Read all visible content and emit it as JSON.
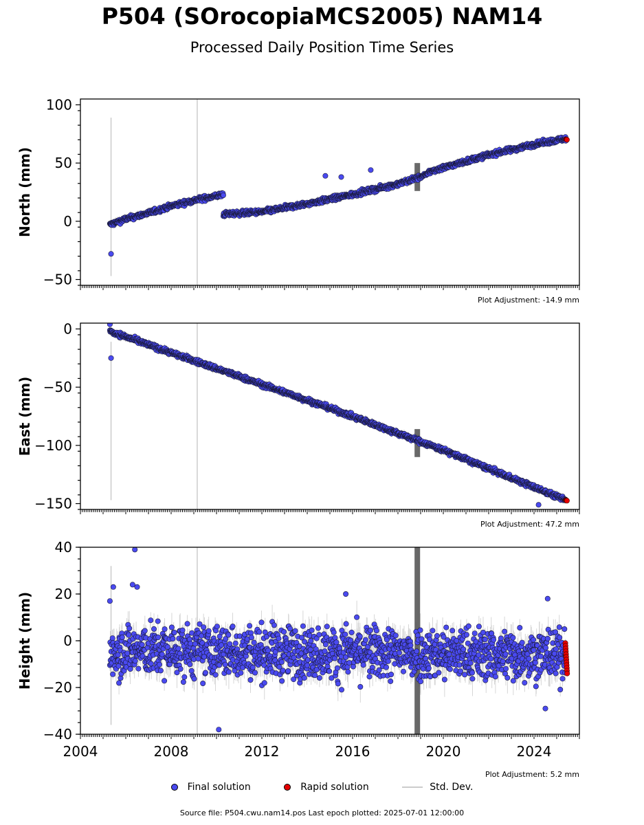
{
  "header": {
    "title": "P504 (SOrocopiaMCS2005) NAM14",
    "subtitle": "Processed Daily Position Time Series"
  },
  "legend": {
    "final": "Final solution",
    "rapid": "Rapid solution",
    "std": "Std. Dev."
  },
  "footer": {
    "source": "Source file: P504.cwu.nam14.pos  Last epoch plotted: 2025-07-01 12:00:00"
  },
  "colors": {
    "final": "#4a4af0",
    "rapid": "#e60000",
    "std": "#bfbfbf",
    "std_dark": "#555555"
  },
  "chart_data": [
    {
      "type": "scatter",
      "ylabel": "North (mm)",
      "ylim": [
        -55,
        105
      ],
      "yticks": [
        -50,
        0,
        50,
        100
      ],
      "xlim": [
        2004,
        2026
      ],
      "adjustment": "Plot Adjustment: -14.9 mm",
      "series": [
        {
          "segment": 1,
          "x": [
            2005.3,
            2006.0,
            2007.0,
            2008.0,
            2009.0,
            2010.3
          ],
          "y": [
            -3,
            2,
            7,
            13,
            18,
            23
          ]
        },
        {
          "segment": 2,
          "x": [
            2010.3,
            2012.0,
            2014.0,
            2016.0,
            2018.0,
            2019.3
          ],
          "y": [
            6,
            8,
            15,
            23,
            32,
            40
          ]
        },
        {
          "segment": 3,
          "x": [
            2019.3,
            2020.0,
            2022.0,
            2024.0,
            2025.4
          ],
          "y": [
            42,
            46,
            57,
            66,
            71
          ]
        }
      ],
      "rapid": {
        "x": [
          2025.4,
          2025.45
        ],
        "y": [
          70.5,
          70.0
        ]
      },
      "outliers": {
        "x": [
          2005.35,
          2014.8,
          2015.5,
          2016.8
        ],
        "y": [
          -28,
          39,
          38,
          44
        ]
      }
    },
    {
      "type": "scatter",
      "ylabel": "East (mm)",
      "ylim": [
        -155,
        5
      ],
      "yticks": [
        -150,
        -100,
        -50,
        0
      ],
      "xlim": [
        2004,
        2026
      ],
      "adjustment": "Plot Adjustment: 47.2 mm",
      "series": [
        {
          "segment": 1,
          "x": [
            2005.3,
            2010.0,
            2015.0,
            2020.0,
            2025.4
          ],
          "y": [
            -2,
            -34,
            -68,
            -104,
            -147
          ]
        }
      ],
      "rapid": {
        "x": [
          2025.4,
          2025.45
        ],
        "y": [
          -147,
          -147.5
        ]
      },
      "outliers": {
        "x": [
          2005.35,
          2005.3,
          2024.2
        ],
        "y": [
          -25,
          4,
          -151
        ]
      }
    },
    {
      "type": "scatter",
      "ylabel": "Height (mm)",
      "ylim": [
        -40,
        40
      ],
      "yticks": [
        -40,
        -20,
        0,
        20,
        40
      ],
      "xlim": [
        2004,
        2026
      ],
      "xticks": [
        2004,
        2008,
        2012,
        2016,
        2020,
        2024
      ],
      "adjustment": "Plot Adjustment: 5.2 mm",
      "series": [
        {
          "segment": 1,
          "x": [
            2005.3,
            2025.4
          ],
          "y": [
            -4,
            -6
          ],
          "spread": 8
        }
      ],
      "rapid": {
        "x": [
          2025.38,
          2025.46
        ],
        "y": [
          -1,
          -14
        ]
      },
      "outliers": {
        "x": [
          2005.45,
          2005.3,
          2006.4,
          2006.5,
          2006.3,
          2010.1,
          2015.7,
          2024.6,
          2024.5
        ],
        "y": [
          23,
          17,
          39,
          23,
          24,
          -38,
          20,
          18,
          -29
        ]
      }
    }
  ]
}
